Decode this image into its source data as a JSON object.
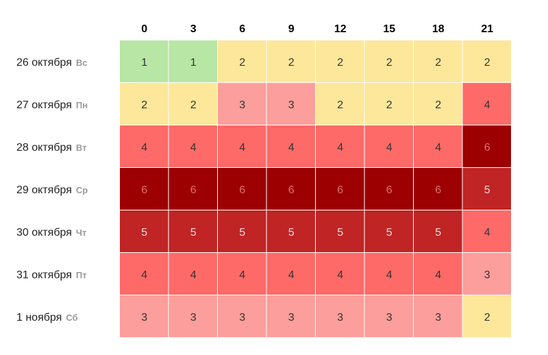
{
  "chart_data": {
    "type": "heatmap",
    "columns": [
      "0",
      "3",
      "6",
      "9",
      "12",
      "15",
      "18",
      "21"
    ],
    "rows": [
      {
        "date": "26 октября",
        "day": "Вс",
        "values": [
          1,
          1,
          2,
          2,
          2,
          2,
          2,
          2
        ]
      },
      {
        "date": "27 октября",
        "day": "Пн",
        "values": [
          2,
          2,
          3,
          3,
          2,
          2,
          2,
          4
        ]
      },
      {
        "date": "28 октября",
        "day": "Вт",
        "values": [
          4,
          4,
          4,
          4,
          4,
          4,
          4,
          6
        ]
      },
      {
        "date": "29 октября",
        "day": "Ср",
        "values": [
          6,
          6,
          6,
          6,
          6,
          6,
          6,
          5
        ]
      },
      {
        "date": "30 октября",
        "day": "Чт",
        "values": [
          5,
          5,
          5,
          5,
          5,
          5,
          5,
          4
        ]
      },
      {
        "date": "31 октября",
        "day": "Пт",
        "values": [
          4,
          4,
          4,
          4,
          4,
          4,
          4,
          3
        ]
      },
      {
        "date": "1 ноября",
        "day": "Сб",
        "values": [
          3,
          3,
          3,
          3,
          3,
          3,
          3,
          2
        ]
      }
    ],
    "color_scale": {
      "1": "#b8e6a4",
      "2": "#fde79a",
      "3": "#fc9e9b",
      "4": "#fd6a68",
      "5": "#c02424",
      "6": "#9c0001"
    },
    "text_colors": {
      "1": "#333333",
      "2": "#333333",
      "3": "#333333",
      "4": "#333333",
      "5": "#f2dede",
      "6": "#e07070"
    }
  }
}
